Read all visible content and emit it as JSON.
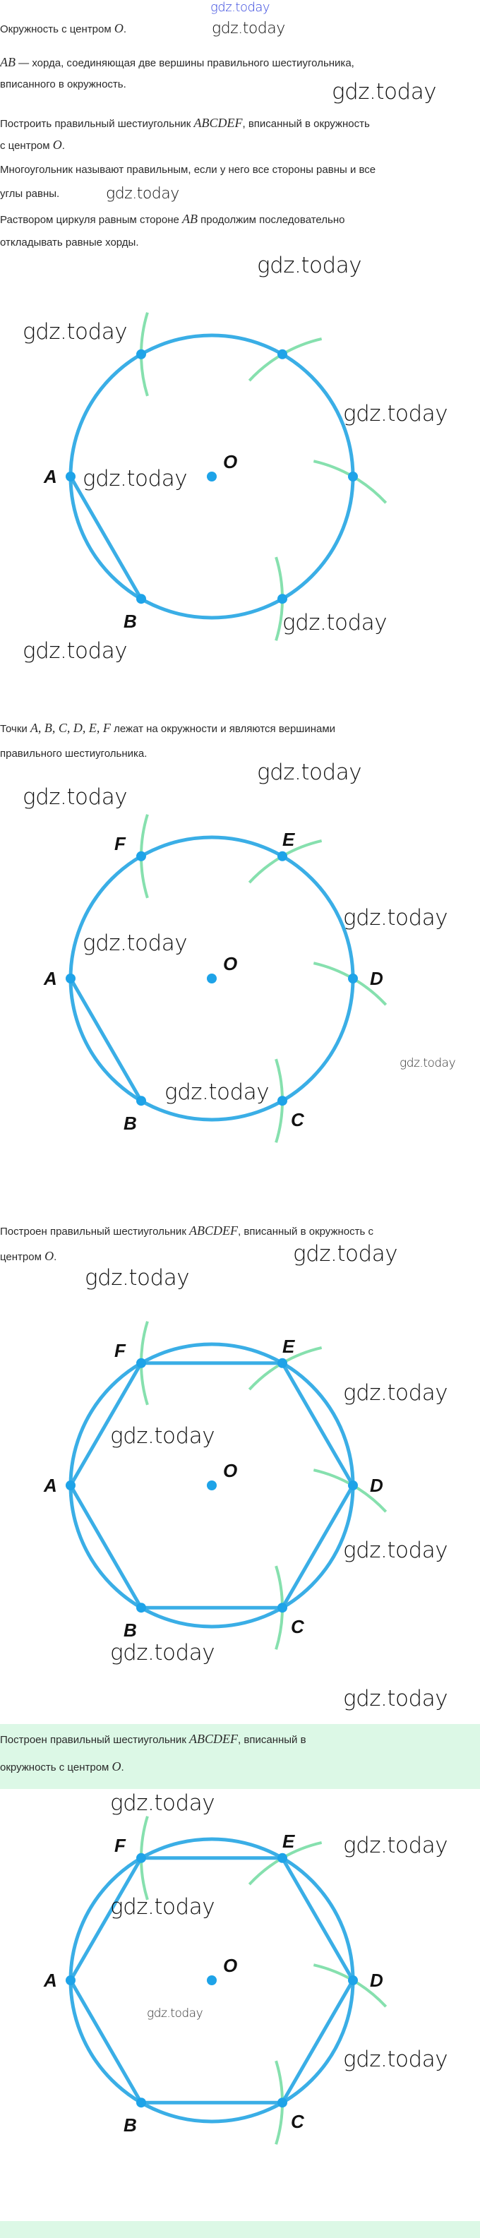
{
  "watermark": "gdz.today",
  "colors": {
    "circle": "#3aaee6",
    "point": "#1ea3e8",
    "arc": "#86e0ae",
    "band": "#dcf8e6"
  },
  "paragraphs": [
    {
      "parts": [
        {
          "t": "Окружность с центром "
        },
        {
          "m": "O"
        },
        {
          "t": "."
        }
      ]
    },
    {
      "parts": [
        {
          "m": "AB"
        },
        {
          "t": " — хорда, соединяющая две вершины правильного шестиугольника,"
        }
      ]
    },
    {
      "parts": [
        {
          "t": "вписанного в окружность."
        }
      ]
    },
    {
      "parts": [
        {
          "t": "Построить правильный шестиугольник "
        },
        {
          "m": "ABCDEF"
        },
        {
          "t": ", вписанный в окружность"
        }
      ]
    },
    {
      "parts": [
        {
          "t": "с центром "
        },
        {
          "m": "O"
        },
        {
          "t": "."
        }
      ]
    },
    {
      "parts": [
        {
          "t": "Многоугольник называют правильным, если у него все стороны равны и все"
        }
      ]
    },
    {
      "parts": [
        {
          "t": "углы равны."
        }
      ]
    },
    {
      "parts": [
        {
          "t": "Раствором циркуля равным стороне "
        },
        {
          "m": "AB"
        },
        {
          "t": " продолжим последовательно"
        }
      ]
    },
    {
      "parts": [
        {
          "t": "откладывать равные хорды."
        }
      ]
    },
    {
      "parts": [
        {
          "t": "Точки "
        },
        {
          "m": "A, B, C, D, E, F"
        },
        {
          "t": " лежат на окружности и являются вершинами"
        }
      ]
    },
    {
      "parts": [
        {
          "t": "правильного шестиугольника."
        }
      ]
    },
    {
      "parts": [
        {
          "t": "Построен правильный шестиугольник "
        },
        {
          "m": "ABCDEF"
        },
        {
          "t": ", вписанный в окружность с"
        }
      ]
    },
    {
      "parts": [
        {
          "t": "центром "
        },
        {
          "m": "O"
        },
        {
          "t": "."
        }
      ]
    },
    {
      "parts": [
        {
          "t": "Построен правильный шестиугольник "
        },
        {
          "m": "ABCDEF"
        },
        {
          "t": ", вписанный в"
        }
      ]
    },
    {
      "parts": [
        {
          "t": "окружность с центром "
        },
        {
          "m": "O"
        },
        {
          "t": "."
        }
      ]
    }
  ],
  "diagrams": [
    {
      "center_label": "O",
      "points": [
        "A",
        "B",
        "",
        "",
        "",
        ""
      ],
      "chords": [
        "AB"
      ]
    },
    {
      "center_label": "O",
      "points": [
        "A",
        "B",
        "C",
        "D",
        "E",
        "F"
      ],
      "chords": [
        "AB"
      ]
    },
    {
      "center_label": "O",
      "points": [
        "A",
        "B",
        "C",
        "D",
        "E",
        "F"
      ],
      "chords": [
        "AB",
        "BC",
        "CD",
        "DE",
        "EF",
        "FA"
      ]
    },
    {
      "center_label": "O",
      "points": [
        "A",
        "B",
        "C",
        "D",
        "E",
        "F"
      ],
      "chords": [
        "AB",
        "BC",
        "CD",
        "DE",
        "EF",
        "FA"
      ]
    }
  ]
}
